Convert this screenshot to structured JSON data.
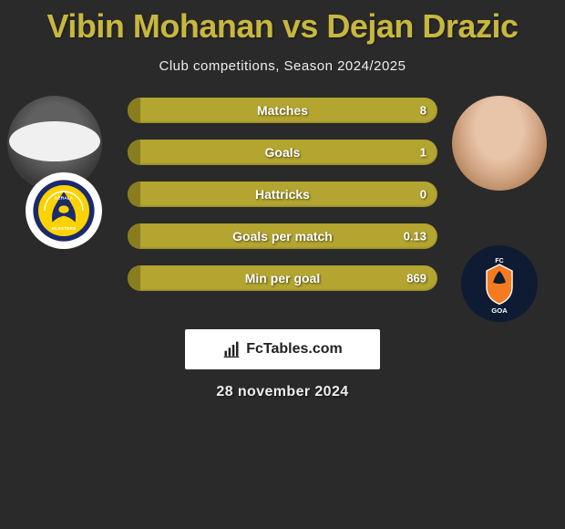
{
  "title": "Vibin Mohanan vs Dejan Drazic",
  "subtitle": "Club competitions, Season 2024/2025",
  "date": "28 november 2024",
  "branding": "FcTables.com",
  "colors": {
    "title_color": "#c8b73f",
    "bar_fill": "#b3a530",
    "bar_left": "#8a7d1f",
    "background": "#2a2a2a"
  },
  "bars": [
    {
      "label": "Matches",
      "left_value": "",
      "right_value": "8",
      "left_pct": 4
    },
    {
      "label": "Goals",
      "left_value": "",
      "right_value": "1",
      "left_pct": 4
    },
    {
      "label": "Hattricks",
      "left_value": "",
      "right_value": "0",
      "left_pct": 4
    },
    {
      "label": "Goals per match",
      "left_value": "",
      "right_value": "0.13",
      "left_pct": 4
    },
    {
      "label": "Min per goal",
      "left_value": "",
      "right_value": "869",
      "left_pct": 4
    }
  ],
  "player_left": {
    "name": "Vibin Mohanan",
    "club": "Kerala Blasters"
  },
  "player_right": {
    "name": "Dejan Drazic",
    "club": "FC Goa"
  }
}
